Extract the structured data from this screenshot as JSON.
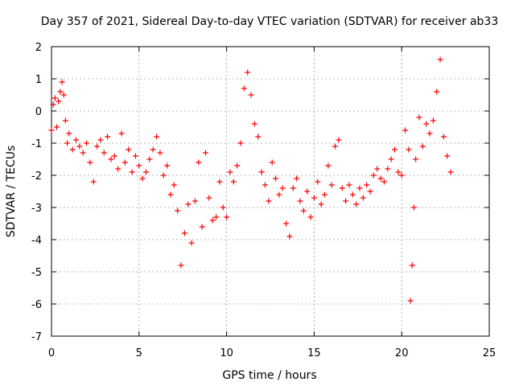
{
  "chart_data": {
    "type": "scatter",
    "title": "Day 357 of 2021, Sidereal Day-to-day VTEC variation (SDTVAR) for receiver ab33",
    "xlabel": "GPS time / hours",
    "ylabel": "SDTVAR / TECUs",
    "xlim": [
      0,
      25
    ],
    "ylim": [
      -7,
      2
    ],
    "xticks": [
      0,
      5,
      10,
      15,
      20,
      25
    ],
    "yticks": [
      -7,
      -6,
      -5,
      -4,
      -3,
      -2,
      -1,
      0,
      1,
      2
    ],
    "grid": true,
    "marker": "+",
    "series": [
      {
        "name": "SDTVAR",
        "color": "#ff0000",
        "x": [
          0.0,
          0.1,
          0.2,
          0.3,
          0.4,
          0.5,
          0.6,
          0.7,
          0.8,
          0.9,
          1.0,
          1.2,
          1.4,
          1.6,
          1.8,
          2.0,
          2.2,
          2.4,
          2.6,
          2.8,
          3.0,
          3.2,
          3.4,
          3.6,
          3.8,
          4.0,
          4.2,
          4.4,
          4.6,
          4.8,
          5.0,
          5.2,
          5.4,
          5.6,
          5.8,
          6.0,
          6.2,
          6.4,
          6.6,
          6.8,
          7.0,
          7.2,
          7.4,
          7.6,
          7.8,
          8.0,
          8.2,
          8.4,
          8.6,
          8.8,
          9.0,
          9.2,
          9.4,
          9.6,
          9.8,
          10.0,
          10.2,
          10.4,
          10.6,
          10.8,
          11.0,
          11.2,
          11.4,
          11.6,
          11.8,
          12.0,
          12.2,
          12.4,
          12.6,
          12.8,
          13.0,
          13.2,
          13.4,
          13.6,
          13.8,
          14.0,
          14.2,
          14.4,
          14.6,
          14.8,
          15.0,
          15.2,
          15.4,
          15.6,
          15.8,
          16.0,
          16.2,
          16.4,
          16.6,
          16.8,
          17.0,
          17.2,
          17.4,
          17.6,
          17.8,
          18.0,
          18.2,
          18.4,
          18.6,
          18.8,
          19.0,
          19.2,
          19.4,
          19.6,
          19.8,
          20.0,
          20.2,
          20.4,
          20.5,
          20.6,
          20.7,
          20.8,
          21.0,
          21.2,
          21.4,
          21.6,
          21.8,
          22.0,
          22.2,
          22.4,
          22.6,
          22.8
        ],
        "y": [
          -0.6,
          0.2,
          0.4,
          -0.5,
          0.3,
          0.6,
          0.9,
          0.5,
          -0.3,
          -1.0,
          -0.7,
          -1.2,
          -0.9,
          -1.1,
          -1.3,
          -1.0,
          -1.6,
          -2.2,
          -1.1,
          -0.9,
          -1.3,
          -0.8,
          -1.5,
          -1.4,
          -1.8,
          -0.7,
          -1.6,
          -1.2,
          -1.9,
          -1.4,
          -1.7,
          -2.1,
          -1.9,
          -1.5,
          -1.2,
          -0.8,
          -1.3,
          -2.0,
          -1.7,
          -2.6,
          -2.3,
          -3.1,
          -4.8,
          -3.8,
          -2.9,
          -4.1,
          -2.8,
          -1.6,
          -3.6,
          -1.3,
          -2.7,
          -3.4,
          -3.3,
          -2.2,
          -3.0,
          -3.3,
          -1.9,
          -2.2,
          -1.7,
          -1.0,
          0.7,
          1.2,
          0.5,
          -0.4,
          -0.8,
          -1.9,
          -2.3,
          -2.8,
          -1.6,
          -2.1,
          -2.6,
          -2.4,
          -3.5,
          -3.9,
          -2.4,
          -2.1,
          -2.8,
          -3.1,
          -2.5,
          -3.3,
          -2.7,
          -2.2,
          -2.9,
          -2.6,
          -1.7,
          -2.3,
          -1.1,
          -0.9,
          -2.4,
          -2.8,
          -2.3,
          -2.6,
          -2.9,
          -2.4,
          -2.7,
          -2.3,
          -2.5,
          -2.0,
          -1.8,
          -2.1,
          -2.2,
          -1.8,
          -1.5,
          -1.2,
          -1.9,
          -2.0,
          -0.6,
          -1.2,
          -5.9,
          -4.8,
          -3.0,
          -1.5,
          -0.2,
          -1.1,
          -0.4,
          -0.7,
          -0.3,
          0.6,
          1.6,
          -0.8,
          -1.4,
          -1.9
        ]
      }
    ]
  }
}
